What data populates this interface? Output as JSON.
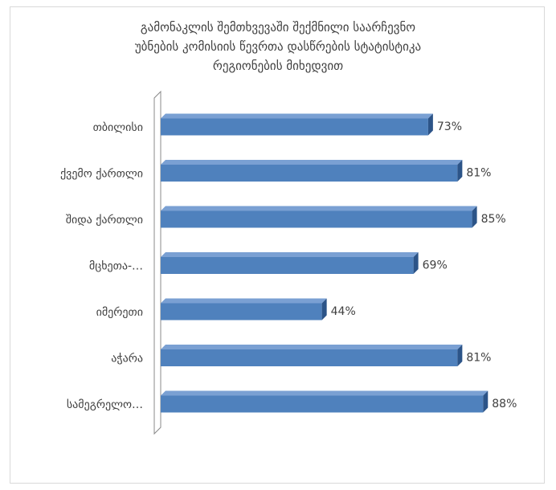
{
  "chart_data": {
    "type": "bar",
    "orientation": "horizontal",
    "title_lines": [
      "გამონაკლის შემთხვევაში შექმნილი საარჩევნო",
      "უბნების კომისიის წევრთა დასწრების სტატისტიკა",
      "რეგიონების მიხედვით"
    ],
    "categories": [
      "თბილისი",
      "ქვემო ქართლი",
      "შიდა ქართლი",
      "მცხეთა-…",
      "იმერეთი",
      "აჭარა",
      "სამეგრელო…"
    ],
    "values": [
      73,
      81,
      85,
      69,
      44,
      81,
      88
    ],
    "data_labels": [
      "73%",
      "81%",
      "85%",
      "69%",
      "44%",
      "81%",
      "88%"
    ],
    "unit": "%",
    "xlim": [
      0,
      100
    ],
    "grid": false,
    "legend": "none",
    "colors": {
      "bar": "#4f81bd",
      "bar_top": "#7aa0d3",
      "bar_side": "#2c5488",
      "text": "#404040",
      "wall": "#888888"
    }
  }
}
